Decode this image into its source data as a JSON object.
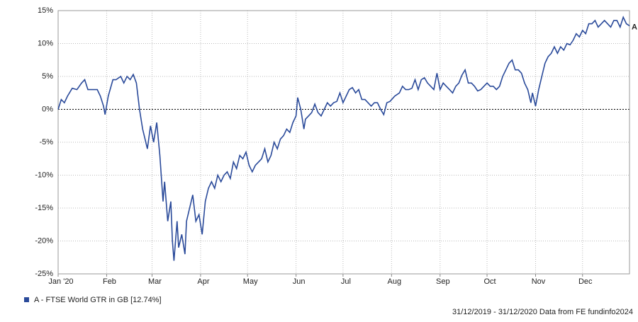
{
  "chart_data": {
    "type": "line",
    "x": [
      0,
      2,
      4,
      6,
      9,
      12,
      15,
      17,
      19,
      22,
      25,
      27,
      29,
      30,
      32,
      35,
      37,
      40,
      42,
      44,
      46,
      48,
      50,
      52,
      54,
      56,
      57,
      59,
      61,
      63,
      65,
      67,
      68,
      70,
      72,
      73,
      74,
      76,
      77,
      79,
      81,
      82,
      84,
      86,
      88,
      90,
      92,
      94,
      96,
      98,
      100,
      102,
      104,
      106,
      108,
      110,
      112,
      114,
      116,
      118,
      120,
      122,
      124,
      126,
      128,
      130,
      132,
      134,
      136,
      138,
      140,
      142,
      144,
      146,
      148,
      150,
      152,
      153,
      155,
      157,
      158,
      160,
      162,
      164,
      166,
      168,
      170,
      172,
      174,
      176,
      178,
      180,
      182,
      184,
      186,
      188,
      190,
      192,
      194,
      196,
      198,
      200,
      202,
      204,
      206,
      208,
      210,
      212,
      215,
      218,
      220,
      222,
      224,
      226,
      228,
      230,
      232,
      234,
      236,
      238,
      240,
      242,
      244,
      246,
      248,
      250,
      252,
      254,
      256,
      258,
      260,
      262,
      264,
      266,
      268,
      270,
      272,
      274,
      276,
      278,
      280,
      282,
      284,
      286,
      288,
      290,
      292,
      294,
      296,
      298,
      300,
      302,
      303,
      305,
      307,
      309,
      311,
      313,
      315,
      317,
      319,
      321,
      323,
      325,
      327,
      329,
      331,
      333,
      335,
      337,
      339,
      341,
      343,
      345,
      347,
      349,
      351,
      353,
      355,
      357,
      359,
      361,
      363,
      365
    ],
    "series": [
      {
        "name": "A - FTSE World GTR in GB [12.74%]",
        "color": "#2a4a9a",
        "values": [
          0,
          1.5,
          1,
          2,
          3.2,
          3,
          4,
          4.5,
          3,
          3,
          3,
          2,
          0.5,
          -0.8,
          2,
          4.5,
          4.5,
          5,
          4,
          5,
          4.5,
          5.3,
          4,
          0,
          -3,
          -5,
          -6,
          -2.5,
          -5,
          -2,
          -7,
          -14,
          -11,
          -17,
          -14,
          -20,
          -23,
          -17,
          -21,
          -19,
          -22,
          -17,
          -15,
          -13,
          -17,
          -16,
          -19,
          -14,
          -12,
          -11,
          -12,
          -10,
          -11,
          -10,
          -9.5,
          -10.5,
          -8,
          -9,
          -7,
          -7.5,
          -6.5,
          -8.5,
          -9.5,
          -8.5,
          -8,
          -7.5,
          -6,
          -8,
          -7,
          -5,
          -6,
          -4.5,
          -4,
          -3,
          -3.5,
          -2,
          -1,
          1.8,
          0,
          -3,
          -1.5,
          -1,
          -0.5,
          0.8,
          -0.5,
          -1,
          0,
          1,
          0.5,
          1,
          1.2,
          2.5,
          1,
          2,
          3,
          3.3,
          2.5,
          3,
          1.5,
          1.5,
          1,
          0.5,
          1,
          1,
          0,
          -0.8,
          1,
          1.2,
          2,
          2.5,
          3.5,
          3,
          3,
          3.2,
          4.5,
          3,
          4.5,
          4.8,
          4,
          3.5,
          3,
          5.5,
          3,
          4,
          3.5,
          3,
          2.5,
          3.5,
          4,
          5.2,
          6,
          4,
          4,
          3.5,
          2.8,
          3,
          3.5,
          4,
          3.5,
          3.5,
          3,
          3.5,
          5,
          6,
          7,
          7.5,
          6,
          6,
          5.5,
          4,
          3,
          1,
          2.5,
          0.5,
          3,
          5,
          7,
          8,
          8.5,
          9.5,
          8.5,
          9.5,
          9,
          10,
          9.8,
          10.5,
          11.5,
          11,
          12,
          11.5,
          13,
          13,
          13.5,
          12.5,
          13,
          13.5,
          13,
          12.5,
          13.5,
          13.5,
          12.5,
          14,
          13,
          12.7
        ]
      }
    ],
    "end_label": "A",
    "xlim": [
      0,
      365
    ],
    "xticks": [
      {
        "value": 0,
        "label": "Jan '20"
      },
      {
        "value": 31,
        "label": "Feb"
      },
      {
        "value": 60,
        "label": "Mar"
      },
      {
        "value": 91,
        "label": "Apr"
      },
      {
        "value": 121,
        "label": "May"
      },
      {
        "value": 152,
        "label": "Jun"
      },
      {
        "value": 182,
        "label": "Jul"
      },
      {
        "value": 213,
        "label": "Aug"
      },
      {
        "value": 244,
        "label": "Sep"
      },
      {
        "value": 274,
        "label": "Oct"
      },
      {
        "value": 305,
        "label": "Nov"
      },
      {
        "value": 335,
        "label": "Dec"
      }
    ],
    "ylim": [
      -25,
      15
    ],
    "yticks": [
      {
        "value": -25,
        "label": "-25%"
      },
      {
        "value": -20,
        "label": "-20%"
      },
      {
        "value": -15,
        "label": "-15%"
      },
      {
        "value": -10,
        "label": "-10%"
      },
      {
        "value": -5,
        "label": "-5%"
      },
      {
        "value": 0,
        "label": "0%"
      },
      {
        "value": 5,
        "label": "5%"
      },
      {
        "value": 10,
        "label": "10%"
      },
      {
        "value": 15,
        "label": "15%"
      }
    ],
    "grid": true,
    "footer": "31/12/2019 - 31/12/2020 Data from FE fundinfo2024"
  }
}
